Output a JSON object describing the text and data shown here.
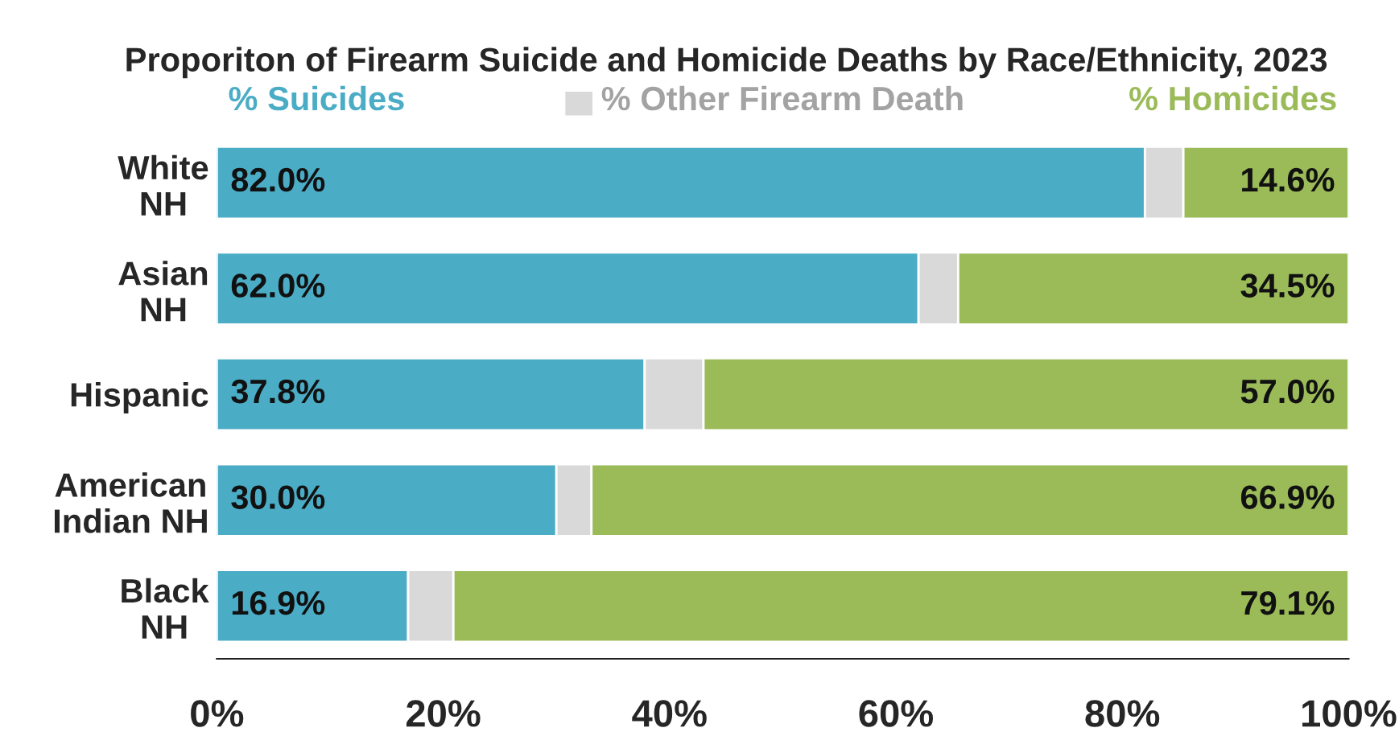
{
  "chart_data": {
    "type": "bar",
    "orientation": "horizontal",
    "stacked": true,
    "title": "Proporiton of Firearm Suicide and Homicide Deaths by Race/Ethnicity, 2023",
    "categories": [
      "White\nNH",
      "Asian\nNH",
      "Hispanic",
      "American\nIndian NH",
      "Black\nNH"
    ],
    "series": [
      {
        "name": "% Suicides",
        "color": "#4bacc6",
        "values": [
          82.0,
          62.0,
          37.8,
          30.0,
          16.9
        ],
        "value_labels": [
          "82.0%",
          "62.0%",
          "37.8%",
          "30.0%",
          "16.9%"
        ]
      },
      {
        "name": "% Other Firearm Death",
        "color": "#d9d9d9",
        "values": [
          3.4,
          3.5,
          5.2,
          3.1,
          4.0
        ]
      },
      {
        "name": "% Homicides",
        "color": "#9bbb59",
        "values": [
          14.6,
          34.5,
          57.0,
          66.9,
          79.1
        ],
        "value_labels": [
          "14.6%",
          "34.5%",
          "57.0%",
          "66.9%",
          "79.1%"
        ]
      }
    ],
    "xlim": [
      0,
      100
    ],
    "xticks": [
      {
        "value": 0,
        "label": "0%"
      },
      {
        "value": 20,
        "label": "20%"
      },
      {
        "value": 40,
        "label": "40%"
      },
      {
        "value": 60,
        "label": "60%"
      },
      {
        "value": 80,
        "label": "80%"
      },
      {
        "value": 100,
        "label": "100%"
      }
    ],
    "legend": "top",
    "grid": false
  }
}
